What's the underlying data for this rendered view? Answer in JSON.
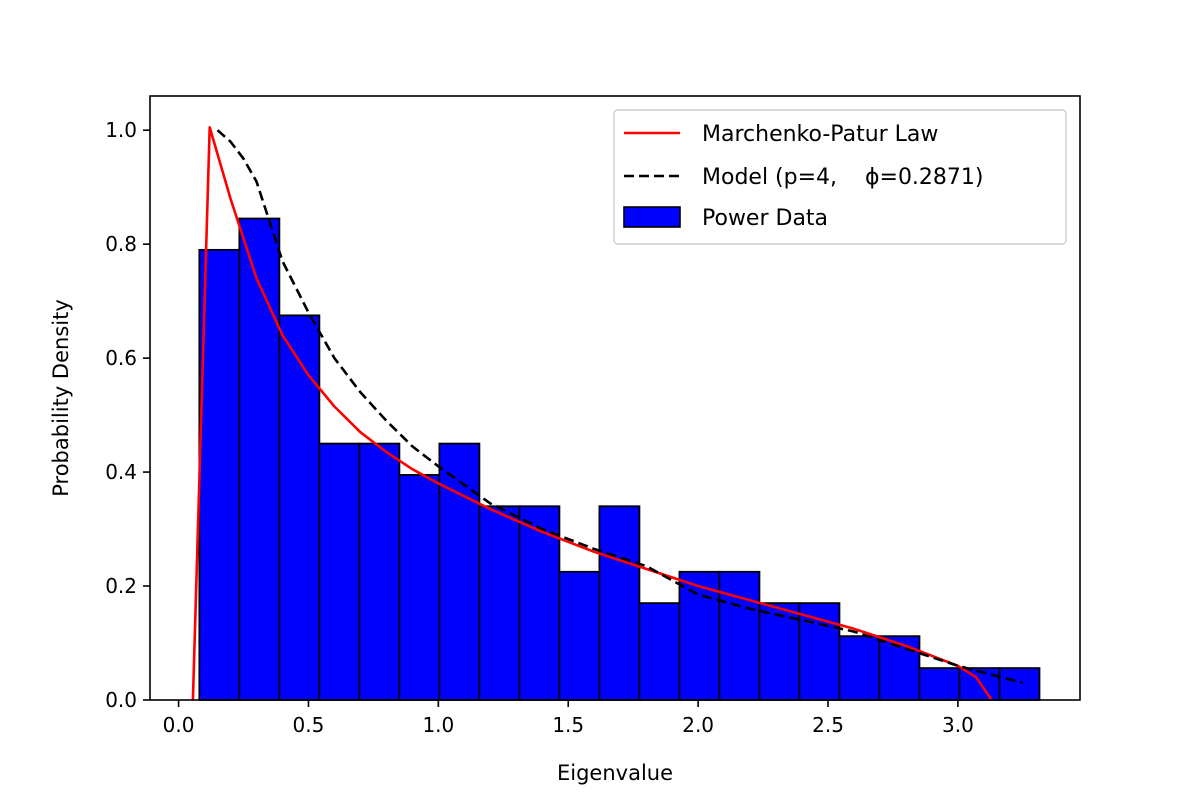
{
  "chart_data": {
    "type": "bar",
    "xlabel": "Eigenvalue",
    "ylabel": "Probability Density",
    "xlim": [
      -0.11,
      3.47
    ],
    "ylim": [
      0,
      1.06
    ],
    "xticks": [
      0.0,
      0.5,
      1.0,
      1.5,
      2.0,
      2.5,
      3.0
    ],
    "xtick_labels": [
      "0.0",
      "0.5",
      "1.0",
      "1.5",
      "2.0",
      "2.5",
      "3.0"
    ],
    "yticks": [
      0.0,
      0.2,
      0.4,
      0.6,
      0.8,
      1.0
    ],
    "ytick_labels": [
      "0.0",
      "0.2",
      "0.4",
      "0.6",
      "0.8",
      "1.0"
    ],
    "legend": {
      "placement": "upper right",
      "entries": [
        {
          "label": "Marchenko-Patur Law",
          "type": "line",
          "color": "#ff0000",
          "dash": "solid"
        },
        {
          "label": "Model (p=4,    ϕ=0.2871)",
          "type": "line",
          "color": "#000000",
          "dash": "dashed"
        },
        {
          "label": "Power Data",
          "type": "patch",
          "color": "#0000ff"
        }
      ]
    },
    "histogram": {
      "name": "Power Data",
      "color": "#0000ff",
      "edge_color": "#000000",
      "bin_edges": [
        0.08,
        0.234,
        0.388,
        0.542,
        0.696,
        0.85,
        1.004,
        1.158,
        1.312,
        1.466,
        1.62,
        1.774,
        1.928,
        2.082,
        2.236,
        2.39,
        2.544,
        2.698,
        2.852,
        3.006,
        3.16,
        3.314
      ],
      "values": [
        0.79,
        0.845,
        0.675,
        0.45,
        0.45,
        0.395,
        0.45,
        0.34,
        0.34,
        0.225,
        0.34,
        0.17,
        0.225,
        0.225,
        0.17,
        0.17,
        0.112,
        0.112,
        0.056,
        0.056,
        0.056
      ]
    },
    "series": [
      {
        "name": "Marchenko-Patur Law",
        "style": "solid",
        "color": "#ff0000",
        "x": [
          0.055,
          0.1,
          0.12,
          0.2,
          0.3,
          0.4,
          0.5,
          0.6,
          0.7,
          0.8,
          0.9,
          1.0,
          1.2,
          1.4,
          1.6,
          1.8,
          2.0,
          2.2,
          2.4,
          2.6,
          2.8,
          3.0,
          3.07,
          3.13
        ],
        "y": [
          0.0,
          0.7,
          1.005,
          0.88,
          0.74,
          0.64,
          0.57,
          0.515,
          0.47,
          0.435,
          0.405,
          0.38,
          0.335,
          0.295,
          0.26,
          0.23,
          0.2,
          0.175,
          0.15,
          0.125,
          0.095,
          0.06,
          0.04,
          0.0
        ]
      },
      {
        "name": "Model (p=4,    ϕ=0.2871)",
        "style": "dashed",
        "color": "#000000",
        "x": [
          0.15,
          0.2,
          0.25,
          0.3,
          0.35,
          0.4,
          0.5,
          0.6,
          0.7,
          0.8,
          0.9,
          1.0,
          1.2,
          1.4,
          1.6,
          1.8,
          2.0,
          2.2,
          2.4,
          2.6,
          2.8,
          3.0,
          3.25
        ],
        "y": [
          1.0,
          0.98,
          0.95,
          0.91,
          0.84,
          0.77,
          0.68,
          0.6,
          0.54,
          0.49,
          0.445,
          0.41,
          0.345,
          0.3,
          0.265,
          0.235,
          0.185,
          0.16,
          0.14,
          0.12,
          0.09,
          0.06,
          0.03
        ]
      }
    ]
  }
}
